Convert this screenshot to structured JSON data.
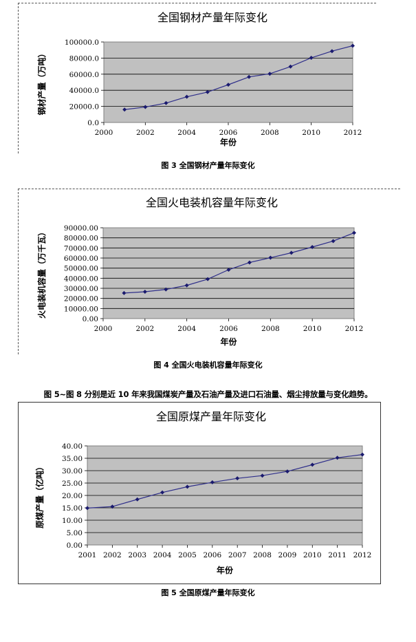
{
  "colors": {
    "plot_bg": "#c0c0c0",
    "grid": "#000000",
    "line": "#2e2e8a"
  },
  "chart_data": [
    {
      "type": "line",
      "title": "全国钢材产量年际变化",
      "xlabel": "年份",
      "ylabel": "钢材产量（万吨）",
      "xlim": [
        2000,
        2012
      ],
      "ylim": [
        0,
        100000
      ],
      "x_ticks": [
        "2000",
        "2002",
        "2004",
        "2006",
        "2008",
        "2010",
        "2012"
      ],
      "y_ticks": [
        "0.0",
        "20000.0",
        "40000.0",
        "60000.0",
        "80000.0",
        "100000.0"
      ],
      "grid": true,
      "series": [
        {
          "x": [
            2001,
            2002,
            2003,
            2004,
            2005,
            2006,
            2007,
            2008,
            2009,
            2010,
            2011,
            2012
          ],
          "values": [
            16000,
            19200,
            24100,
            31900,
            37800,
            46900,
            56600,
            60500,
            69400,
            80300,
            88600,
            95300
          ]
        }
      ]
    },
    {
      "type": "line",
      "title": "全国火电装机容量年际变化",
      "xlabel": "年份",
      "ylabel": "火电装机容量（万千瓦）",
      "xlim": [
        2000,
        2012
      ],
      "ylim": [
        0,
        90000
      ],
      "x_ticks": [
        "2000",
        "2002",
        "2004",
        "2006",
        "2008",
        "2010",
        "2012"
      ],
      "y_ticks": [
        "0.00",
        "10000.00",
        "20000.00",
        "30000.00",
        "40000.00",
        "50000.00",
        "60000.00",
        "70000.00",
        "80000.00",
        "90000.00"
      ],
      "grid": true,
      "series": [
        {
          "x": [
            2001,
            2002,
            2003,
            2004,
            2005,
            2006,
            2007,
            2008,
            2009,
            2010,
            2011,
            2012
          ],
          "values": [
            25300,
            26600,
            28900,
            32900,
            39100,
            48400,
            55600,
            60300,
            65200,
            70900,
            76800,
            85000
          ]
        }
      ]
    },
    {
      "type": "line",
      "title": "全国原煤产量年际变化",
      "xlabel": "年份",
      "ylabel": "原煤产量（亿吨）",
      "ylim": [
        0,
        40
      ],
      "categories": [
        "2001",
        "2002",
        "2003",
        "2004",
        "2005",
        "2006",
        "2007",
        "2008",
        "2009",
        "2010",
        "2011",
        "2012"
      ],
      "y_ticks": [
        "0.00",
        "5.00",
        "10.00",
        "15.00",
        "20.00",
        "25.00",
        "30.00",
        "35.00",
        "40.00"
      ],
      "grid": true,
      "series": [
        {
          "values": [
            14.9,
            15.5,
            18.4,
            21.2,
            23.5,
            25.3,
            26.9,
            28.0,
            29.7,
            32.4,
            35.2,
            36.5
          ]
        }
      ]
    }
  ],
  "captions": {
    "fig3": "图 3  全国钢材产量年际变化",
    "fig4": "图 4  全国火电装机容量年际变化",
    "fig5": "图 5  全国原煤产量年际变化"
  },
  "paragraph": "图 5~图 8 分别是近 10 年来我国煤炭产量及石油产量及进口石油量、烟尘排放量与变化趋势。"
}
